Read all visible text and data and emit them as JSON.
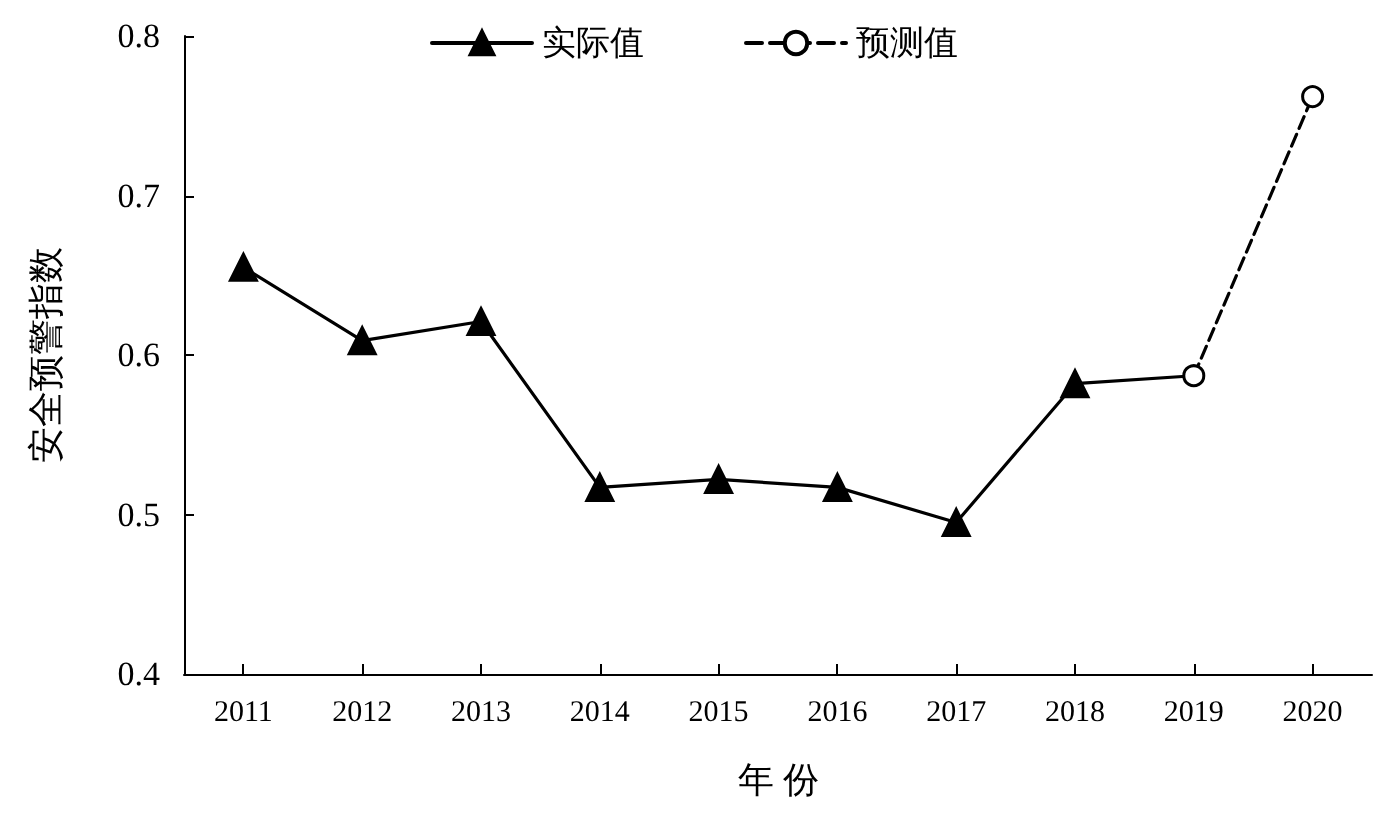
{
  "chart_data": {
    "type": "line",
    "xlabel": "年 份",
    "ylabel": "安全预警指数",
    "categories": [
      "2011",
      "2012",
      "2013",
      "2014",
      "2015",
      "2016",
      "2017",
      "2018",
      "2019",
      "2020"
    ],
    "series": [
      {
        "name": "实际值",
        "color": "#000000",
        "marker": "triangle",
        "line_style": "solid",
        "values": [
          0.655,
          0.609,
          0.621,
          0.517,
          0.522,
          0.517,
          0.495,
          0.582,
          0.587,
          null
        ]
      },
      {
        "name": "预测值",
        "color": "#000000",
        "marker": "circle",
        "line_style": "dashed",
        "values": [
          null,
          null,
          null,
          null,
          null,
          null,
          null,
          null,
          0.587,
          0.762
        ]
      }
    ],
    "ylim": [
      0.4,
      0.8
    ],
    "yticks": [
      0.4,
      0.5,
      0.6,
      0.7,
      0.8
    ],
    "grid": false,
    "legend": "top"
  }
}
